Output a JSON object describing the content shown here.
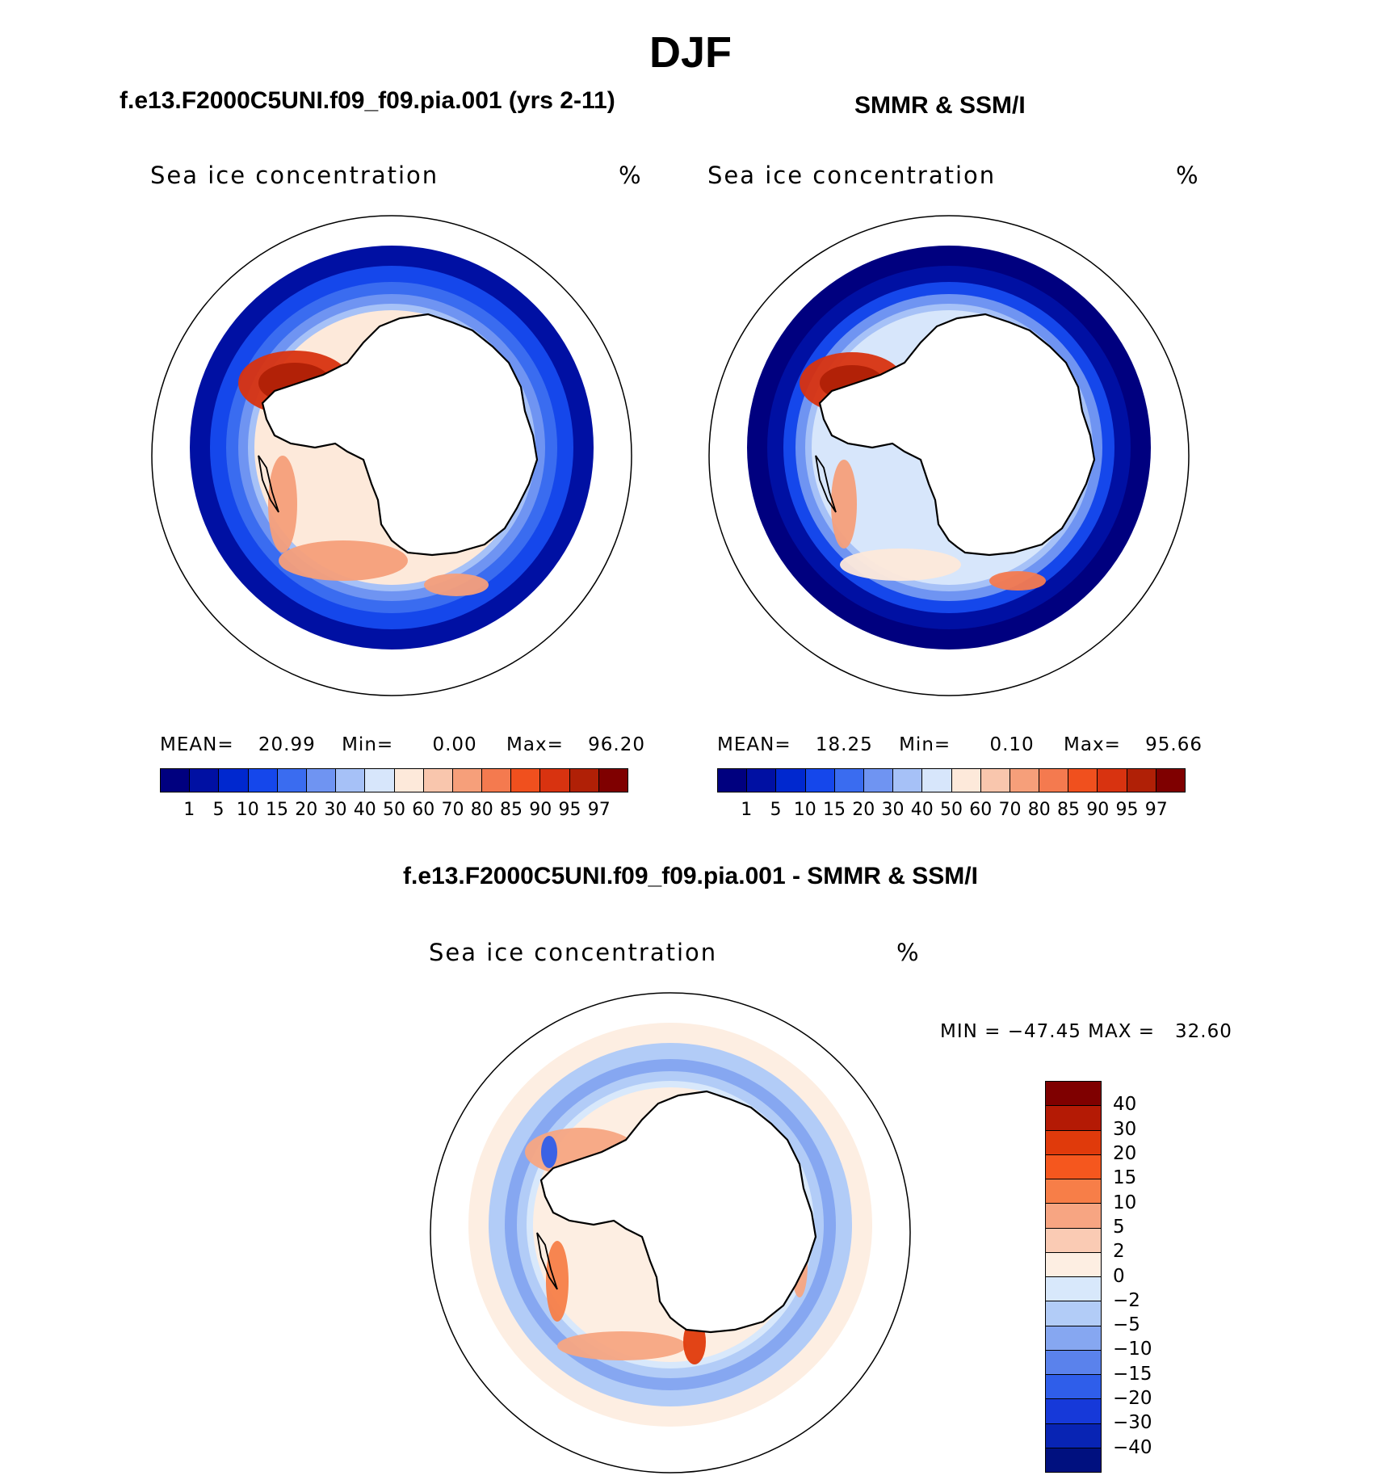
{
  "figure": {
    "title": "DJF",
    "subtitle_left": "f.e13.F2000C5UNI.f09_f09.pia.001 (yrs 2-11)",
    "subtitle_right": "SMMR & SSM/I",
    "diff_title": "f.e13.F2000C5UNI.f09_f09.pia.001 - SMMR & SSM/I"
  },
  "panels": {
    "left": {
      "label": "Sea ice concentration",
      "unit": "%",
      "mean_label": "MEAN=",
      "mean": "20.99",
      "min_label": "Min=",
      "min": "0.00",
      "max_label": "Max=",
      "max": "96.20"
    },
    "right": {
      "label": "Sea ice concentration",
      "unit": "%",
      "mean_label": "MEAN=",
      "mean": "18.25",
      "min_label": "Min=",
      "min": "0.10",
      "max_label": "Max=",
      "max": "95.66"
    },
    "diff": {
      "label": "Sea ice concentration",
      "unit": "%",
      "minmax_text": "MIN = −47.45 MAX =   32.60"
    }
  },
  "colors": {
    "seq_scale": [
      "#00007f",
      "#0010a3",
      "#0028cf",
      "#1547eb",
      "#3a6cf0",
      "#6f94f2",
      "#a6c1f7",
      "#d7e6fb",
      "#fde9da",
      "#f9c6ad",
      "#f69f7a",
      "#f47a4f",
      "#f0501e",
      "#d83310",
      "#b02006",
      "#7f0000"
    ],
    "div_scale": [
      "#7f0000",
      "#b41a05",
      "#e03a0b",
      "#f5571e",
      "#f77e48",
      "#f7a582",
      "#facbb4",
      "#fdeee2",
      "#d8e8fb",
      "#b2ccf7",
      "#86a7f1",
      "#5a82ec",
      "#2f5eea",
      "#1639d9",
      "#0824b4",
      "#00107f"
    ],
    "land": "#ffffff",
    "outline": "#000000"
  },
  "colorbar_seq_ticks": [
    "1",
    "5",
    "10",
    "15",
    "20",
    "30",
    "40",
    "50",
    "60",
    "70",
    "80",
    "85",
    "90",
    "95",
    "97"
  ],
  "colorbar_div_ticks": [
    "40",
    "30",
    "20",
    "15",
    "10",
    "5",
    "2",
    "0",
    "−2",
    "−5",
    "−10",
    "−15",
    "−20",
    "−30",
    "−40"
  ],
  "chart_data": [
    {
      "type": "heatmap",
      "title": "f.e13.F2000C5UNI.f09_f09.pia.001 (yrs 2-11)",
      "variable": "Sea ice concentration",
      "units": "%",
      "projection": "south polar stereographic",
      "season": "DJF",
      "stats": {
        "mean": 20.99,
        "min": 0.0,
        "max": 96.2
      },
      "levels": [
        1,
        5,
        10,
        15,
        20,
        30,
        40,
        50,
        60,
        70,
        80,
        85,
        90,
        95,
        97
      ]
    },
    {
      "type": "heatmap",
      "title": "SMMR & SSM/I",
      "variable": "Sea ice concentration",
      "units": "%",
      "projection": "south polar stereographic",
      "season": "DJF",
      "stats": {
        "mean": 18.25,
        "min": 0.1,
        "max": 95.66
      },
      "levels": [
        1,
        5,
        10,
        15,
        20,
        30,
        40,
        50,
        60,
        70,
        80,
        85,
        90,
        95,
        97
      ]
    },
    {
      "type": "heatmap",
      "title": "f.e13.F2000C5UNI.f09_f09.pia.001 - SMMR & SSM/I",
      "variable": "Sea ice concentration",
      "units": "%",
      "projection": "south polar stereographic",
      "season": "DJF",
      "stats": {
        "min": -47.45,
        "max": 32.6
      },
      "levels": [
        -40,
        -30,
        -20,
        -15,
        -10,
        -5,
        -2,
        0,
        2,
        5,
        10,
        15,
        20,
        30,
        40
      ]
    }
  ]
}
